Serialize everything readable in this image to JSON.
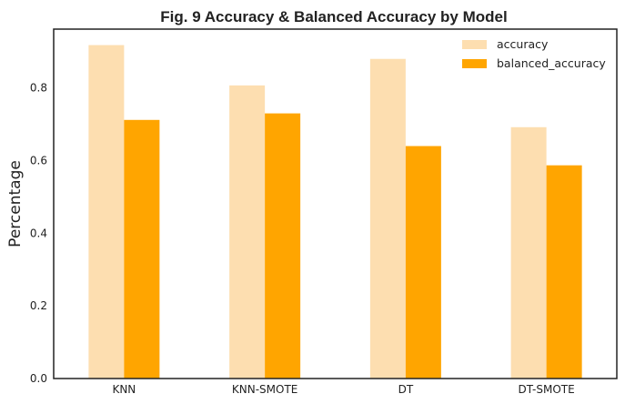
{
  "chart_data": {
    "type": "bar",
    "title": "Fig. 9 Accuracy & Balanced Accuracy by Model",
    "xlabel": "",
    "ylabel": "Percentage",
    "categories": [
      "KNN",
      "KNN-SMOTE",
      "DT",
      "DT-SMOTE"
    ],
    "series": [
      {
        "name": "accuracy",
        "values": [
          0.918,
          0.807,
          0.88,
          0.692
        ],
        "color": "#fddeb0"
      },
      {
        "name": "balanced_accuracy",
        "values": [
          0.712,
          0.73,
          0.64,
          0.587
        ],
        "color": "#ffa500"
      }
    ],
    "ylim": [
      0,
      0.962
    ],
    "yticks": [
      "0.0",
      "0.2",
      "0.4",
      "0.6",
      "0.8"
    ],
    "grid": false,
    "legend_position": "top-right"
  }
}
